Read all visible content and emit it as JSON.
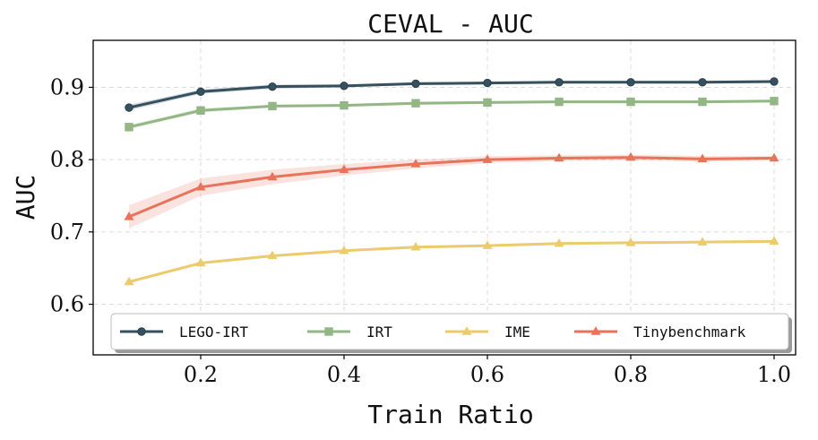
{
  "chart_data": {
    "type": "line",
    "title": "CEVAL - AUC",
    "xlabel": "Train Ratio",
    "ylabel": "AUC",
    "x": [
      0.1,
      0.2,
      0.3,
      0.4,
      0.5,
      0.6,
      0.7,
      0.8,
      0.9,
      1.0
    ],
    "xlim": [
      0.05,
      1.03
    ],
    "ylim": [
      0.53,
      0.965
    ],
    "xticks": [
      0.2,
      0.4,
      0.6,
      0.8,
      1.0
    ],
    "xtick_labels": [
      "0.2",
      "0.4",
      "0.6",
      "0.8",
      "1.0"
    ],
    "yticks": [
      0.6,
      0.7,
      0.8,
      0.9
    ],
    "ytick_labels": [
      "0.6",
      "0.7",
      "0.8",
      "0.9"
    ],
    "grid": true,
    "legend_position": "bottom",
    "series": [
      {
        "name": "LEGO-IRT",
        "color": "#35505e",
        "marker": "circle",
        "values": [
          0.872,
          0.894,
          0.901,
          0.902,
          0.905,
          0.906,
          0.907,
          0.907,
          0.907,
          0.908
        ],
        "band": [
          0.004,
          0.003,
          0.003,
          0.002,
          0.002,
          0.002,
          0.002,
          0.002,
          0.002,
          0.002
        ]
      },
      {
        "name": "IRT",
        "color": "#93b784",
        "marker": "square",
        "values": [
          0.845,
          0.868,
          0.874,
          0.875,
          0.878,
          0.879,
          0.88,
          0.88,
          0.88,
          0.881
        ],
        "band": [
          0.003,
          0.003,
          0.002,
          0.002,
          0.002,
          0.002,
          0.002,
          0.002,
          0.002,
          0.002
        ]
      },
      {
        "name": "IME",
        "color": "#eccb6e",
        "marker": "triangle",
        "values": [
          0.631,
          0.657,
          0.667,
          0.674,
          0.679,
          0.681,
          0.684,
          0.685,
          0.686,
          0.687
        ],
        "band": [
          0.002,
          0.002,
          0.002,
          0.002,
          0.002,
          0.002,
          0.002,
          0.002,
          0.002,
          0.002
        ]
      },
      {
        "name": "Tinybenchmark",
        "color": "#e8735a",
        "marker": "triangle",
        "values": [
          0.721,
          0.762,
          0.776,
          0.786,
          0.794,
          0.8,
          0.802,
          0.803,
          0.801,
          0.802
        ],
        "band": [
          0.016,
          0.012,
          0.01,
          0.008,
          0.006,
          0.005,
          0.004,
          0.004,
          0.004,
          0.003
        ]
      }
    ]
  }
}
